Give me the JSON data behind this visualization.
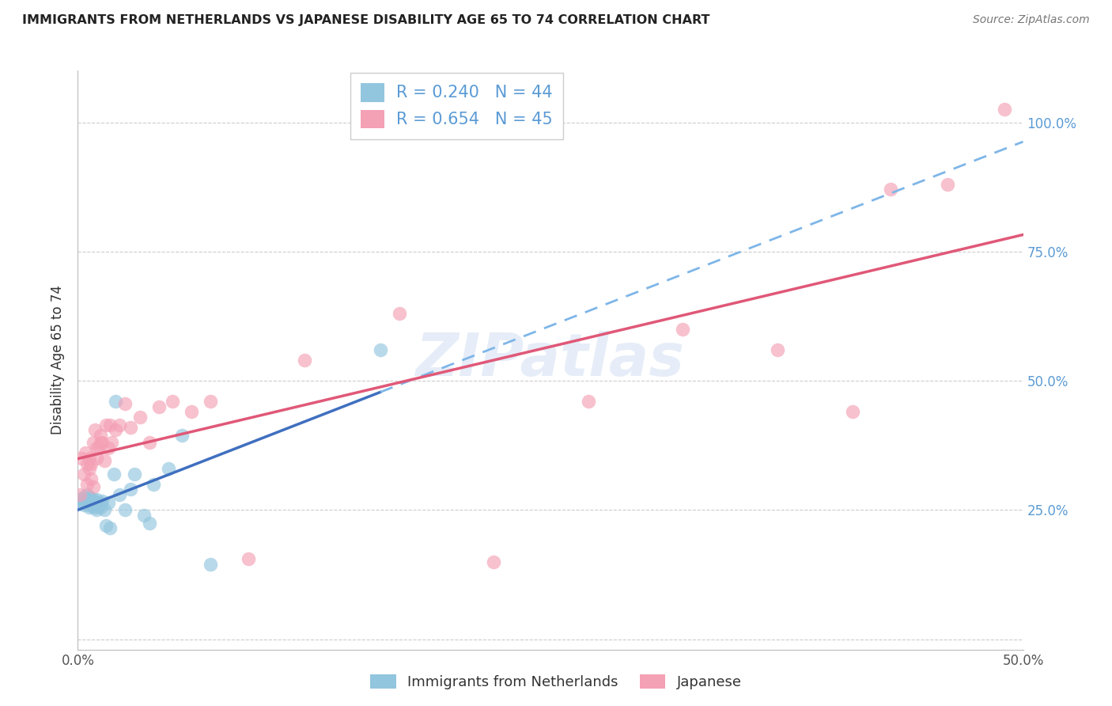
{
  "title": "IMMIGRANTS FROM NETHERLANDS VS JAPANESE DISABILITY AGE 65 TO 74 CORRELATION CHART",
  "source": "Source: ZipAtlas.com",
  "ylabel": "Disability Age 65 to 74",
  "xlim": [
    0.0,
    0.5
  ],
  "ylim": [
    -0.02,
    1.1
  ],
  "x_ticks": [
    0.0,
    0.1,
    0.2,
    0.3,
    0.4,
    0.5
  ],
  "x_tick_labels": [
    "0.0%",
    "",
    "",
    "",
    "",
    "50.0%"
  ],
  "y_ticks_right": [
    0.25,
    0.5,
    0.75,
    1.0
  ],
  "y_tick_labels_right": [
    "25.0%",
    "50.0%",
    "75.0%",
    "100.0%"
  ],
  "legend_label1": "Immigrants from Netherlands",
  "legend_label2": "Japanese",
  "R1": 0.24,
  "N1": 44,
  "R2": 0.654,
  "N2": 45,
  "color_blue": "#92C5DE",
  "color_pink": "#F4A0B5",
  "line_color_blue": "#3F6FBF",
  "line_color_pink": "#E05878",
  "line_color_blue_dash": "#7EB6E8",
  "watermark": "ZIPatlas",
  "blue_x": [
    0.001,
    0.002,
    0.003,
    0.003,
    0.004,
    0.004,
    0.005,
    0.005,
    0.006,
    0.006,
    0.006,
    0.007,
    0.007,
    0.007,
    0.008,
    0.008,
    0.008,
    0.009,
    0.009,
    0.01,
    0.01,
    0.01,
    0.011,
    0.011,
    0.012,
    0.012,
    0.013,
    0.014,
    0.015,
    0.016,
    0.017,
    0.019,
    0.02,
    0.022,
    0.025,
    0.028,
    0.03,
    0.035,
    0.038,
    0.04,
    0.048,
    0.055,
    0.07,
    0.16
  ],
  "blue_y": [
    0.27,
    0.265,
    0.275,
    0.26,
    0.27,
    0.268,
    0.265,
    0.28,
    0.255,
    0.275,
    0.268,
    0.26,
    0.272,
    0.258,
    0.265,
    0.27,
    0.26,
    0.255,
    0.265,
    0.26,
    0.25,
    0.27,
    0.258,
    0.262,
    0.255,
    0.265,
    0.268,
    0.25,
    0.22,
    0.265,
    0.215,
    0.32,
    0.46,
    0.28,
    0.25,
    0.29,
    0.32,
    0.24,
    0.225,
    0.3,
    0.33,
    0.395,
    0.145,
    0.56
  ],
  "pink_x": [
    0.001,
    0.002,
    0.003,
    0.004,
    0.005,
    0.005,
    0.006,
    0.006,
    0.007,
    0.007,
    0.008,
    0.008,
    0.009,
    0.01,
    0.01,
    0.011,
    0.012,
    0.012,
    0.013,
    0.014,
    0.015,
    0.016,
    0.017,
    0.018,
    0.02,
    0.022,
    0.025,
    0.028,
    0.033,
    0.038,
    0.043,
    0.05,
    0.06,
    0.07,
    0.09,
    0.12,
    0.17,
    0.22,
    0.27,
    0.32,
    0.37,
    0.41,
    0.43,
    0.46,
    0.49
  ],
  "pink_y": [
    0.28,
    0.35,
    0.32,
    0.36,
    0.3,
    0.34,
    0.33,
    0.35,
    0.31,
    0.34,
    0.295,
    0.38,
    0.405,
    0.35,
    0.37,
    0.37,
    0.38,
    0.395,
    0.38,
    0.345,
    0.415,
    0.37,
    0.415,
    0.38,
    0.405,
    0.415,
    0.455,
    0.41,
    0.43,
    0.38,
    0.45,
    0.46,
    0.44,
    0.46,
    0.155,
    0.54,
    0.63,
    0.15,
    0.46,
    0.6,
    0.56,
    0.44,
    0.87,
    0.88,
    1.025
  ]
}
